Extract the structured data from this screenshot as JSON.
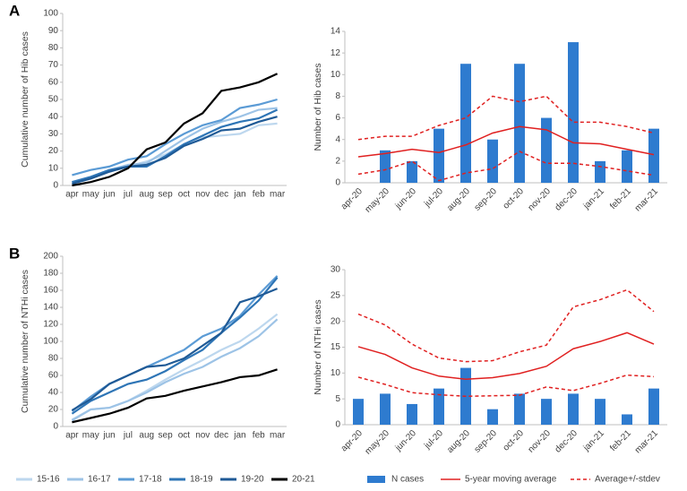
{
  "chart_data": [
    {
      "type": "line",
      "label": "A",
      "y_label": "Cumulative number of Hib cases",
      "categories": [
        "apr",
        "may",
        "jun",
        "jul",
        "aug",
        "sep",
        "oct",
        "nov",
        "dec",
        "jan",
        "feb",
        "mar"
      ],
      "ylim": [
        0,
        100
      ],
      "yticks": [
        0,
        10,
        20,
        30,
        40,
        50,
        60,
        70,
        80,
        90,
        100
      ],
      "series": [
        {
          "color": "#bdd7ee",
          "values": [
            1,
            4,
            8,
            11,
            14,
            18,
            24,
            28,
            29,
            30,
            35,
            36
          ]
        },
        {
          "color": "#9dc3e6",
          "values": [
            2,
            5,
            9,
            12,
            13,
            20,
            27,
            33,
            37,
            40,
            44,
            45
          ]
        },
        {
          "color": "#5b9bd5",
          "values": [
            6,
            9,
            11,
            15,
            17,
            24,
            30,
            35,
            38,
            45,
            47,
            50
          ]
        },
        {
          "color": "#2e75b6",
          "values": [
            2,
            5,
            9,
            11,
            11,
            17,
            24,
            29,
            34,
            37,
            39,
            44
          ]
        },
        {
          "color": "#1f5a96",
          "values": [
            1,
            4,
            8,
            11,
            12,
            16,
            23,
            27,
            32,
            33,
            37,
            40
          ]
        },
        {
          "color": "#000000",
          "values": [
            0,
            2,
            5,
            10,
            21,
            25,
            36,
            42,
            55,
            57,
            60,
            65
          ]
        }
      ]
    },
    {
      "type": "combo",
      "y_label": "Number of Hib cases",
      "categories": [
        "apr-20",
        "may-20",
        "jun-20",
        "jul-20",
        "aug-20",
        "sep-20",
        "oct-20",
        "nov-20",
        "dec-20",
        "jan-21",
        "feb-21",
        "mar-21"
      ],
      "ylim": [
        0,
        14
      ],
      "yticks": [
        0,
        2,
        4,
        6,
        8,
        10,
        12,
        14
      ],
      "series": [
        {
          "kind": "bar",
          "color": "#2e7bcf",
          "values": [
            0,
            3,
            2,
            5,
            11,
            4,
            11,
            6,
            13,
            2,
            3,
            5
          ]
        },
        {
          "kind": "line",
          "color": "#e02020",
          "values": [
            2.4,
            2.7,
            3.1,
            2.8,
            3.5,
            4.6,
            5.2,
            4.9,
            3.7,
            3.6,
            3.1,
            2.6
          ]
        },
        {
          "kind": "band",
          "color": "#e02020",
          "upper": [
            4.0,
            4.3,
            4.3,
            5.3,
            6.0,
            8.0,
            7.5,
            8.0,
            5.6,
            5.6,
            5.2,
            4.6
          ],
          "lower": [
            0.8,
            1.2,
            2.0,
            0.2,
            0.9,
            1.3,
            2.9,
            1.8,
            1.8,
            1.5,
            1.1,
            0.7
          ]
        }
      ]
    },
    {
      "type": "line",
      "label": "B",
      "y_label": "Cumulative number of NTHi cases",
      "categories": [
        "apr",
        "may",
        "jun",
        "jul",
        "aug",
        "sep",
        "oct",
        "nov",
        "dec",
        "jan",
        "feb",
        "mar"
      ],
      "ylim": [
        0,
        200
      ],
      "yticks": [
        0,
        20,
        40,
        60,
        80,
        100,
        120,
        140,
        160,
        180,
        200
      ],
      "series": [
        {
          "name": "15-16",
          "color": "#bdd7ee",
          "values": [
            8,
            20,
            22,
            30,
            42,
            55,
            67,
            78,
            90,
            100,
            115,
            132
          ]
        },
        {
          "name": "16-17",
          "color": "#9dc3e6",
          "values": [
            7,
            20,
            22,
            30,
            40,
            52,
            62,
            70,
            82,
            92,
            106,
            126
          ]
        },
        {
          "name": "17-18",
          "color": "#5b9bd5",
          "values": [
            18,
            35,
            50,
            60,
            70,
            80,
            90,
            106,
            115,
            130,
            155,
            177
          ]
        },
        {
          "name": "18-19",
          "color": "#2e75b6",
          "values": [
            15,
            30,
            40,
            50,
            55,
            65,
            78,
            90,
            110,
            128,
            148,
            175
          ]
        },
        {
          "name": "19-20",
          "color": "#1f5a96",
          "values": [
            19,
            32,
            50,
            60,
            70,
            72,
            80,
            95,
            110,
            146,
            153,
            162
          ]
        },
        {
          "name": "20-21",
          "color": "#000000",
          "values": [
            5,
            10,
            15,
            22,
            33,
            36,
            42,
            47,
            52,
            58,
            60,
            67
          ]
        }
      ]
    },
    {
      "type": "combo",
      "y_label": "Number of NTHi cases",
      "categories": [
        "apr-20",
        "may-20",
        "jun-20",
        "jul-20",
        "aug-20",
        "sep-20",
        "oct-20",
        "nov-20",
        "dec-20",
        "jan-21",
        "feb-21",
        "mar-21"
      ],
      "ylim": [
        0,
        30
      ],
      "yticks": [
        0,
        5,
        10,
        15,
        20,
        25,
        30
      ],
      "series": [
        {
          "name": "N cases",
          "kind": "bar",
          "color": "#2e7bcf",
          "values": [
            5,
            6,
            4,
            7,
            11,
            3,
            6,
            5,
            6,
            5,
            2,
            7
          ]
        },
        {
          "name": "5-year moving average",
          "kind": "line",
          "color": "#e02020",
          "values": [
            15.1,
            13.6,
            11.0,
            9.4,
            8.8,
            9.1,
            9.9,
            11.3,
            14.7,
            16.1,
            17.8,
            15.6
          ]
        },
        {
          "name": "Average+/-stdev",
          "kind": "band",
          "color": "#e02020",
          "upper": [
            21.4,
            19.3,
            15.6,
            12.9,
            12.2,
            12.4,
            14.1,
            15.4,
            22.8,
            24.2,
            26.1,
            21.9
          ],
          "lower": [
            9.2,
            7.8,
            6.2,
            5.8,
            5.5,
            5.6,
            5.7,
            7.3,
            6.6,
            8.0,
            9.6,
            9.3
          ]
        }
      ]
    }
  ]
}
